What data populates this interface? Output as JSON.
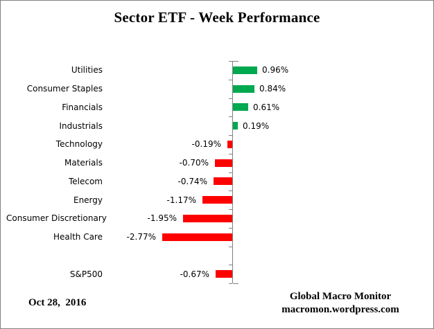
{
  "title": {
    "text": "Sector ETF - Week Performance"
  },
  "chart_data": {
    "type": "bar",
    "orientation": "horizontal",
    "title": "Sector ETF - Week Performance",
    "categories": [
      "Utilities",
      "Consumer Staples",
      "Financials",
      "Industrials",
      "Technology",
      "Materials",
      "Telecom",
      "Energy",
      "Consumer Discretionary",
      "Health Care",
      "",
      "S&P500"
    ],
    "values": [
      0.96,
      0.84,
      0.61,
      0.19,
      -0.19,
      -0.7,
      -0.74,
      -1.17,
      -1.95,
      -2.77,
      null,
      -0.67
    ],
    "value_labels": [
      "0.96%",
      "0.84%",
      "0.61%",
      "0.19%",
      "-0.19%",
      "-0.70%",
      "-0.74%",
      "-1.17%",
      "-1.95%",
      "-2.77%",
      "",
      "-0.67%"
    ],
    "unit": "%",
    "value_range_approx": [
      -3.0,
      1.0
    ],
    "positive_color": "#00A850",
    "negative_color": "#FF0000",
    "axis_color": "#808080",
    "grid": false,
    "legend": false,
    "value_axis_labels_shown": false
  },
  "footer": {
    "date": "Oct 28,  2016",
    "attribution_line1": "Global Macro Monitor",
    "attribution_line2": "macromon.wordpress.com"
  }
}
